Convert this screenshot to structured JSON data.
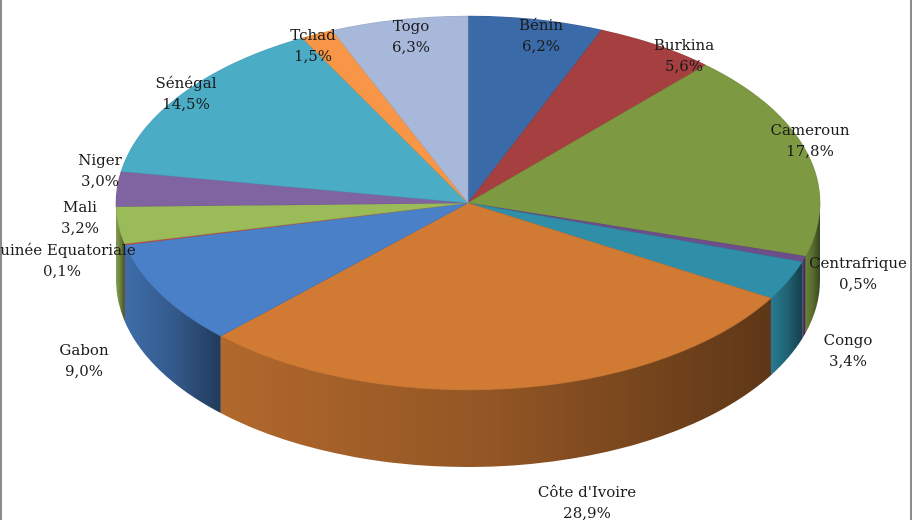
{
  "chart_data": {
    "type": "pie",
    "title": "",
    "slices": [
      {
        "label": "Bénin",
        "value": 6.2,
        "display": "6,2%",
        "color": "#3B6AA8"
      },
      {
        "label": "Burkina",
        "value": 5.6,
        "display": "5,6%",
        "color": "#A63F3F"
      },
      {
        "label": "Cameroun",
        "value": 17.8,
        "display": "17,8%",
        "color": "#7D9A42"
      },
      {
        "label": "Centrafrique",
        "value": 0.5,
        "display": "0,5%",
        "color": "#6C4F8A"
      },
      {
        "label": "Congo",
        "value": 3.4,
        "display": "3,4%",
        "color": "#2F8FA9"
      },
      {
        "label": "Côte d'Ivoire",
        "value": 28.9,
        "display": "28,9%",
        "color": "#D07A34"
      },
      {
        "label": "Gabon",
        "value": 9.0,
        "display": "9,0%",
        "color": "#4A80C8"
      },
      {
        "label": "Guinée Equatoriale",
        "value": 0.1,
        "display": "0,1%",
        "color": "#C0504D"
      },
      {
        "label": "Mali",
        "value": 3.2,
        "display": "3,2%",
        "color": "#9BBB59"
      },
      {
        "label": "Niger",
        "value": 3.0,
        "display": "3,0%",
        "color": "#8064A2"
      },
      {
        "label": "Sénégal",
        "value": 14.5,
        "display": "14,5%",
        "color": "#4BACC6"
      },
      {
        "label": "Tchad",
        "value": 1.5,
        "display": "1,5%",
        "color": "#F79646"
      },
      {
        "label": "Togo",
        "value": 6.3,
        "display": "6,3%",
        "color": "#A8B8DA"
      }
    ]
  }
}
